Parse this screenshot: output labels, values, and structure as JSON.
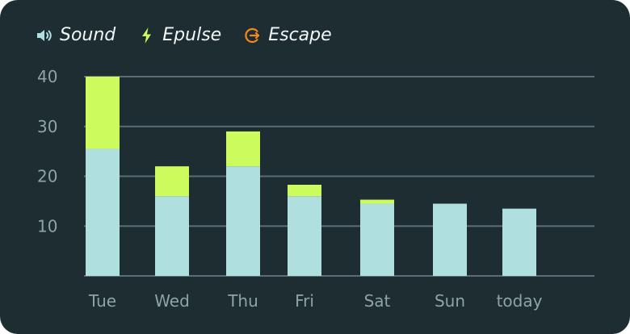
{
  "legend": [
    {
      "label": "Sound",
      "icon": "speaker-icon",
      "color": "#b0dfe0"
    },
    {
      "label": "Epulse",
      "icon": "lightning-icon",
      "color": "#ccfb5e"
    },
    {
      "label": "Escape",
      "icon": "escape-icon",
      "color": "#f2891d"
    }
  ],
  "colors": {
    "background": "#1d2d31",
    "sound": "#b0dfe0",
    "epulse": "#ccfb5e",
    "escape": "#f2891d",
    "grid": "#586e72",
    "tick_text": "#8fa3a6"
  },
  "chart_data": {
    "type": "bar",
    "stacked": true,
    "categories": [
      "Tue",
      "Wed",
      "Thu",
      "Fri",
      "Sat",
      "Sun",
      "today"
    ],
    "series": [
      {
        "name": "Sound",
        "values": [
          25.5,
          16,
          22,
          16,
          14.5,
          14.5,
          13.5
        ]
      },
      {
        "name": "Epulse",
        "values": [
          14.5,
          6,
          7,
          2.3,
          0.8,
          0,
          0
        ]
      },
      {
        "name": "Escape",
        "values": [
          0,
          0,
          0,
          0,
          0,
          0,
          0
        ]
      }
    ],
    "yticks": [
      "10",
      "20",
      "30",
      "40"
    ],
    "ylim": [
      0,
      40
    ],
    "grid": true,
    "legend_position": "top-left"
  }
}
